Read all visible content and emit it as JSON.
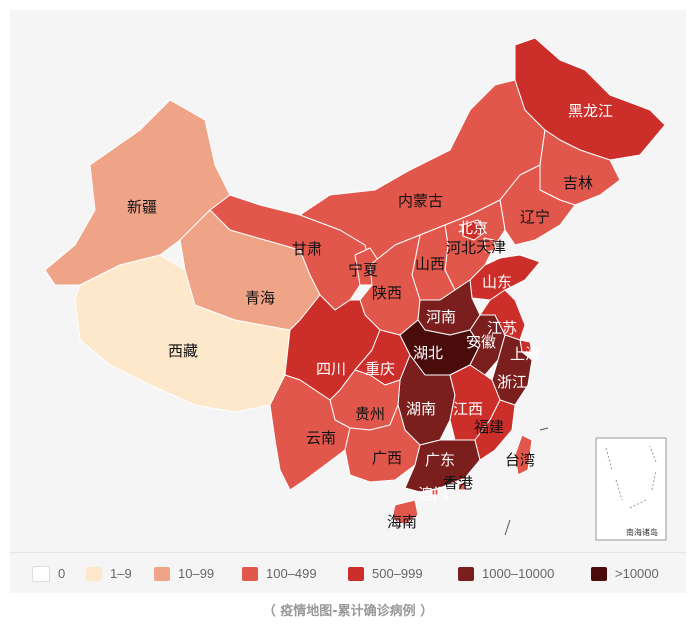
{
  "map": {
    "colors": {
      "c0": "#ffffff",
      "c1": "#fde8cc",
      "c2": "#f0a487",
      "c3": "#e2574c",
      "c4": "#cc2e2a",
      "c5": "#7a1e1e",
      "c6": "#4a0b0b",
      "sea": "#f5f5f5"
    },
    "provinces": [
      {
        "key": "xinjiang",
        "name": "新疆",
        "tier": "c2",
        "light": false
      },
      {
        "key": "xizang",
        "name": "西藏",
        "tier": "c1",
        "light": false
      },
      {
        "key": "qinghai",
        "name": "青海",
        "tier": "c2",
        "light": false
      },
      {
        "key": "gansu",
        "name": "甘肃",
        "tier": "c3",
        "light": false
      },
      {
        "key": "neimenggu",
        "name": "内蒙古",
        "tier": "c3",
        "light": false
      },
      {
        "key": "heilongjiang",
        "name": "黑龙江",
        "tier": "c4",
        "light": true
      },
      {
        "key": "jilin",
        "name": "吉林",
        "tier": "c3",
        "light": false
      },
      {
        "key": "liaoning",
        "name": "辽宁",
        "tier": "c3",
        "light": false
      },
      {
        "key": "beijing",
        "name": "北京",
        "tier": "c4",
        "light": true
      },
      {
        "key": "tianjin",
        "name": "天津",
        "tier": "c3",
        "light": false
      },
      {
        "key": "hebei",
        "name": "河北",
        "tier": "c3",
        "light": false
      },
      {
        "key": "ningxia",
        "name": "宁夏",
        "tier": "c3",
        "light": false
      },
      {
        "key": "shanxi",
        "name": "山西",
        "tier": "c3",
        "light": false
      },
      {
        "key": "shaanxi",
        "name": "陕西",
        "tier": "c3",
        "light": false
      },
      {
        "key": "shandong",
        "name": "山东",
        "tier": "c4",
        "light": true
      },
      {
        "key": "henan",
        "name": "河南",
        "tier": "c5",
        "light": true
      },
      {
        "key": "sichuan",
        "name": "四川",
        "tier": "c4",
        "light": true
      },
      {
        "key": "chongqing",
        "name": "重庆",
        "tier": "c4",
        "light": true
      },
      {
        "key": "hubei",
        "name": "湖北",
        "tier": "c6",
        "light": true
      },
      {
        "key": "anhui",
        "name": "安徽",
        "tier": "c5",
        "light": true
      },
      {
        "key": "jiangsu",
        "name": "江苏",
        "tier": "c4",
        "light": true
      },
      {
        "key": "shanghai",
        "name": "上海",
        "tier": "c4",
        "light": true
      },
      {
        "key": "zhejiang",
        "name": "浙江",
        "tier": "c5",
        "light": true
      },
      {
        "key": "hunan",
        "name": "湖南",
        "tier": "c5",
        "light": true
      },
      {
        "key": "jiangxi",
        "name": "江西",
        "tier": "c4",
        "light": true
      },
      {
        "key": "guizhou",
        "name": "贵州",
        "tier": "c3",
        "light": false
      },
      {
        "key": "yunnan",
        "name": "云南",
        "tier": "c3",
        "light": false
      },
      {
        "key": "guangxi",
        "name": "广西",
        "tier": "c3",
        "light": false
      },
      {
        "key": "guangdong",
        "name": "广东",
        "tier": "c5",
        "light": true
      },
      {
        "key": "fujian",
        "name": "福建",
        "tier": "c4",
        "light": false
      },
      {
        "key": "taiwan",
        "name": "台湾",
        "tier": "c3",
        "light": false
      },
      {
        "key": "xianggang",
        "name": "香港",
        "tier": "c3",
        "light": false
      },
      {
        "key": "aomen",
        "name": "澳门",
        "tier": "c3",
        "light": false
      },
      {
        "key": "hainan",
        "name": "海南",
        "tier": "c3",
        "light": false
      }
    ],
    "inset_label": "南海诸岛"
  },
  "legend": [
    {
      "label": "0",
      "color": "#ffffff"
    },
    {
      "label": "1–9",
      "color": "#fde8cc"
    },
    {
      "label": "10–99",
      "color": "#f0a487"
    },
    {
      "label": "100–499",
      "color": "#e2574c"
    },
    {
      "label": "500–999",
      "color": "#cc2e2a"
    },
    {
      "label": "1000–10000",
      "color": "#7a1e1e"
    },
    {
      "label": ">10000",
      "color": "#4a0b0b"
    }
  ],
  "caption": "（ 疫情地图-累计确诊病例 ）"
}
